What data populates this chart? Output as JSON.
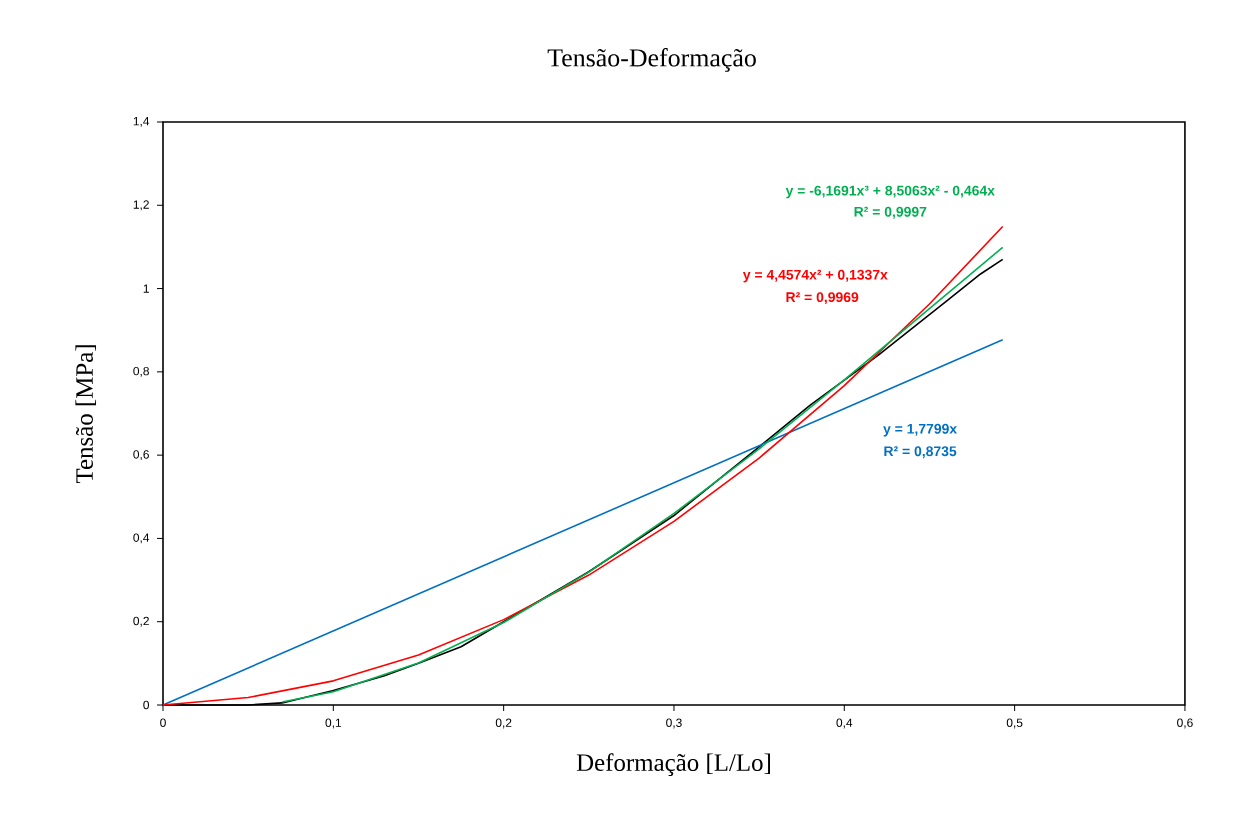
{
  "chart_data": {
    "type": "line",
    "title": "Tensão-Deformação",
    "xlabel": "Deformação [L/Lo]",
    "ylabel": "Tensão [MPa]",
    "xlim": [
      0,
      0.6
    ],
    "ylim": [
      0,
      1.4
    ],
    "xticks": [
      0,
      {
        "value": 0.1,
        "label": "0,1"
      },
      {
        "value": 0.2,
        "label": "0,2"
      },
      {
        "value": 0.3,
        "label": "0,3"
      },
      {
        "value": 0.4,
        "label": "0,4"
      },
      {
        "value": 0.5,
        "label": "0,5"
      },
      {
        "value": 0.6,
        "label": "0,6"
      }
    ],
    "yticks": [
      0,
      {
        "value": 0.2,
        "label": "0,2"
      },
      {
        "value": 0.4,
        "label": "0,4"
      },
      {
        "value": 0.6,
        "label": "0,6"
      },
      {
        "value": 0.8,
        "label": "0,8"
      },
      1,
      {
        "value": 1.2,
        "label": "1,2"
      },
      {
        "value": 1.4,
        "label": "1,4"
      }
    ],
    "marker": "none",
    "line_style": "solid",
    "series": [
      {
        "color": "#000000",
        "x": [
          0,
          0.05,
          0.07,
          0.1,
          0.13,
          0.15,
          0.175,
          0.2,
          0.25,
          0.3,
          0.35,
          0.38,
          0.4,
          0.42,
          0.44,
          0.46,
          0.48,
          0.493
        ],
        "values": [
          0,
          0,
          0.005,
          0.035,
          0.07,
          0.1,
          0.14,
          0.2,
          0.32,
          0.455,
          0.62,
          0.72,
          0.78,
          0.84,
          0.905,
          0.97,
          1.035,
          1.07
        ]
      },
      {
        "color": "#0070c0",
        "x": [
          0,
          0.493
        ],
        "values": [
          0,
          0.877
        ]
      },
      {
        "color": "#ff0000",
        "x": [
          0,
          0.05,
          0.1,
          0.15,
          0.2,
          0.25,
          0.3,
          0.35,
          0.4,
          0.45,
          0.493
        ],
        "values": [
          0,
          0.018,
          0.058,
          0.12,
          0.205,
          0.312,
          0.441,
          0.593,
          0.767,
          0.963,
          1.149
        ]
      },
      {
        "color": "#00b050",
        "x": [
          0.07,
          0.1,
          0.15,
          0.2,
          0.25,
          0.3,
          0.35,
          0.4,
          0.45,
          0.493
        ],
        "values": [
          0.007,
          0.032,
          0.101,
          0.198,
          0.319,
          0.46,
          0.615,
          0.781,
          0.952,
          1.099
        ]
      }
    ],
    "annotations": [
      "y = 1,7799x",
      "R² = 0,8735",
      "y = 4,4574x² + 0,1337x",
      "R² = 0,9969",
      "y = -6,1691x³ + 8,5063x² - 0,464x",
      "R² = 0,9997"
    ]
  }
}
